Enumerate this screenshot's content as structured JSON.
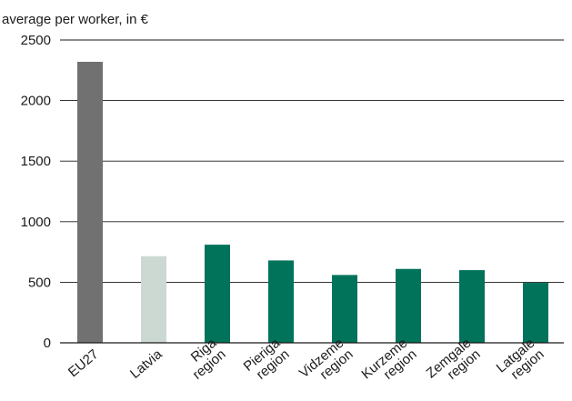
{
  "chart_data": {
    "type": "bar",
    "ylabel": "average per worker, in €",
    "ylim": [
      0,
      2500
    ],
    "yticks": [
      0,
      500,
      1000,
      1500,
      2000,
      2500
    ],
    "grid": true,
    "categories": [
      [
        "EU27"
      ],
      [
        "Latvia"
      ],
      [
        "Riga",
        "region"
      ],
      [
        "Pieriga",
        "region"
      ],
      [
        "Vidzeme",
        "region"
      ],
      [
        "Kurzeme",
        "region"
      ],
      [
        "Zemgale",
        "region"
      ],
      [
        "Latgale",
        "region"
      ]
    ],
    "values": [
      2320,
      715,
      810,
      680,
      560,
      610,
      600,
      495
    ],
    "colors": [
      "#717171",
      "#ccd8d2",
      "#00735a",
      "#00735a",
      "#00735a",
      "#00735a",
      "#00735a",
      "#00735a"
    ]
  }
}
